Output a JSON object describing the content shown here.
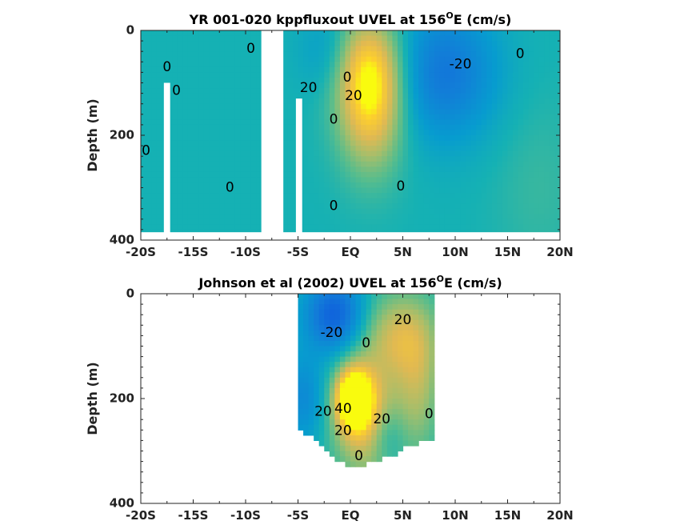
{
  "chart_data": [
    {
      "type": "heatmap",
      "title": "YR 001-020 kppfluxout UVEL at 156",
      "title_sup": "O",
      "title_tail": "E (cm/s)",
      "ylabel": "Depth (m)",
      "xlabel": "",
      "x_ticks": [
        -20,
        -15,
        -10,
        -5,
        0,
        5,
        10,
        15,
        20
      ],
      "x_tick_labels": [
        "-20S",
        "-15S",
        "-10S",
        "-5S",
        "EQ",
        "5N",
        "10N",
        "15N",
        "20N"
      ],
      "y_ticks": [
        0,
        200,
        400
      ],
      "y_tick_labels": [
        "0",
        "200",
        "400"
      ],
      "xlim": [
        -20,
        20
      ],
      "ylim": [
        0,
        400
      ],
      "y_reversed": true,
      "missing_bands": [
        {
          "x0": -17.8,
          "x1": -17.2,
          "y0": 100,
          "y1": 400
        },
        {
          "x0": -8.5,
          "x1": -6.4,
          "y0": 0,
          "y1": 400
        },
        {
          "x0": -5.2,
          "x1": -4.6,
          "y0": 130,
          "y1": 400
        },
        {
          "x0": -20,
          "x1": 20,
          "y0": 385,
          "y1": 400
        }
      ],
      "field_blobs": [
        {
          "x": 2.0,
          "y": 140,
          "value": 30,
          "sx": 2.2,
          "sy": 90
        },
        {
          "x": 1.5,
          "y": 60,
          "value": 18,
          "sx": 2.5,
          "sy": 70
        },
        {
          "x": 9.0,
          "y": 80,
          "value": -22,
          "sx": 3.5,
          "sy": 90
        },
        {
          "x": -2.0,
          "y": 40,
          "value": -10,
          "sx": 2.0,
          "sy": 60
        },
        {
          "x": 18.0,
          "y": 300,
          "value": 4,
          "sx": 3.0,
          "sy": 120
        }
      ],
      "contour_labels": [
        {
          "x": -17.5,
          "y": 70,
          "text": "0"
        },
        {
          "x": -16.6,
          "y": 115,
          "text": "0"
        },
        {
          "x": -19.5,
          "y": 230,
          "text": "0"
        },
        {
          "x": -11.5,
          "y": 300,
          "text": "0"
        },
        {
          "x": -9.5,
          "y": 35,
          "text": "0"
        },
        {
          "x": -4.0,
          "y": 110,
          "text": "20"
        },
        {
          "x": -0.3,
          "y": 90,
          "text": "0"
        },
        {
          "x": 0.3,
          "y": 125,
          "text": "20"
        },
        {
          "x": -1.6,
          "y": 170,
          "text": "0"
        },
        {
          "x": -1.6,
          "y": 335,
          "text": "0"
        },
        {
          "x": 4.8,
          "y": 298,
          "text": "0"
        },
        {
          "x": 10.5,
          "y": 65,
          "text": "-20"
        },
        {
          "x": 16.2,
          "y": 45,
          "text": "0"
        }
      ]
    },
    {
      "type": "heatmap",
      "title": "Johnson et al (2002) UVEL at 156",
      "title_sup": "O",
      "title_tail": "E (cm/s)",
      "ylabel": "Depth (m)",
      "xlabel": "",
      "x_ticks": [
        -20,
        -15,
        -10,
        -5,
        0,
        5,
        10,
        15,
        20
      ],
      "x_tick_labels": [
        "-20S",
        "-15S",
        "-10S",
        "-5S",
        "EQ",
        "5N",
        "10N",
        "15N",
        "20N"
      ],
      "y_ticks": [
        0,
        200,
        400
      ],
      "y_tick_labels": [
        "0",
        "200",
        "400"
      ],
      "xlim": [
        -20,
        20
      ],
      "ylim": [
        0,
        400
      ],
      "y_reversed": true,
      "data_extent_x": [
        -5,
        8
      ],
      "data_bottom_profile": [
        {
          "x": -5.0,
          "y": 260
        },
        {
          "x": -3.5,
          "y": 270
        },
        {
          "x": -2.5,
          "y": 300
        },
        {
          "x": -1.0,
          "y": 318
        },
        {
          "x": 0.0,
          "y": 335
        },
        {
          "x": 1.0,
          "y": 330
        },
        {
          "x": 2.0,
          "y": 320
        },
        {
          "x": 3.0,
          "y": 315
        },
        {
          "x": 4.5,
          "y": 310
        },
        {
          "x": 5.0,
          "y": 290
        },
        {
          "x": 6.5,
          "y": 285
        },
        {
          "x": 7.5,
          "y": 275
        },
        {
          "x": 8.0,
          "y": 280
        }
      ],
      "field_blobs": [
        {
          "x": 0.3,
          "y": 200,
          "value": 45,
          "sx": 1.2,
          "sy": 40
        },
        {
          "x": 1.5,
          "y": 240,
          "value": 25,
          "sx": 2.2,
          "sy": 80
        },
        {
          "x": 4.5,
          "y": 80,
          "value": 20,
          "sx": 2.5,
          "sy": 60
        },
        {
          "x": 6.5,
          "y": 180,
          "value": 15,
          "sx": 1.5,
          "sy": 90
        },
        {
          "x": -1.5,
          "y": 40,
          "value": -30,
          "sx": 2.0,
          "sy": 50
        },
        {
          "x": 3.5,
          "y": 270,
          "value": -10,
          "sx": 1.2,
          "sy": 40
        },
        {
          "x": -4.5,
          "y": 200,
          "value": -15,
          "sx": 1.5,
          "sy": 60
        }
      ],
      "contour_labels": [
        {
          "x": -1.8,
          "y": 75,
          "text": "-20"
        },
        {
          "x": 1.5,
          "y": 95,
          "text": "0"
        },
        {
          "x": 5.0,
          "y": 50,
          "text": "20"
        },
        {
          "x": -2.6,
          "y": 225,
          "text": "20"
        },
        {
          "x": -0.7,
          "y": 220,
          "text": "40"
        },
        {
          "x": -0.7,
          "y": 262,
          "text": "20"
        },
        {
          "x": 3.0,
          "y": 240,
          "text": "20"
        },
        {
          "x": 7.5,
          "y": 230,
          "text": "0"
        },
        {
          "x": 0.8,
          "y": 310,
          "text": "0"
        }
      ]
    }
  ]
}
